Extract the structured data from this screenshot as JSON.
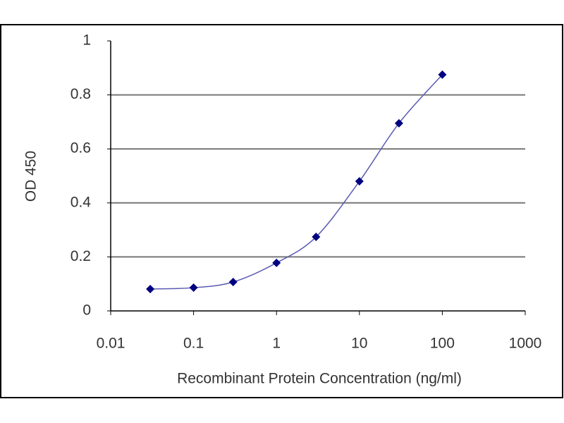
{
  "chart_data": {
    "type": "line",
    "x_label": "Recombinant Protein Concentration (ng/ml)",
    "y_label": "OD 450",
    "x": [
      0.03,
      0.1,
      0.3,
      1,
      3,
      10,
      30,
      100
    ],
    "series": [
      {
        "values": [
          0.081,
          0.086,
          0.107,
          0.178,
          0.274,
          0.48,
          0.695,
          0.875
        ],
        "color": "#000080",
        "line_color": "#5a5ab4"
      }
    ],
    "x_log": true,
    "xlim": [
      0.01,
      1000
    ],
    "xticks": [
      0.01,
      0.1,
      1,
      10,
      100,
      1000
    ],
    "ylim": [
      0,
      1
    ],
    "yticks": [
      0,
      0.2,
      0.4,
      0.6,
      0.8,
      1
    ],
    "grid": true
  }
}
